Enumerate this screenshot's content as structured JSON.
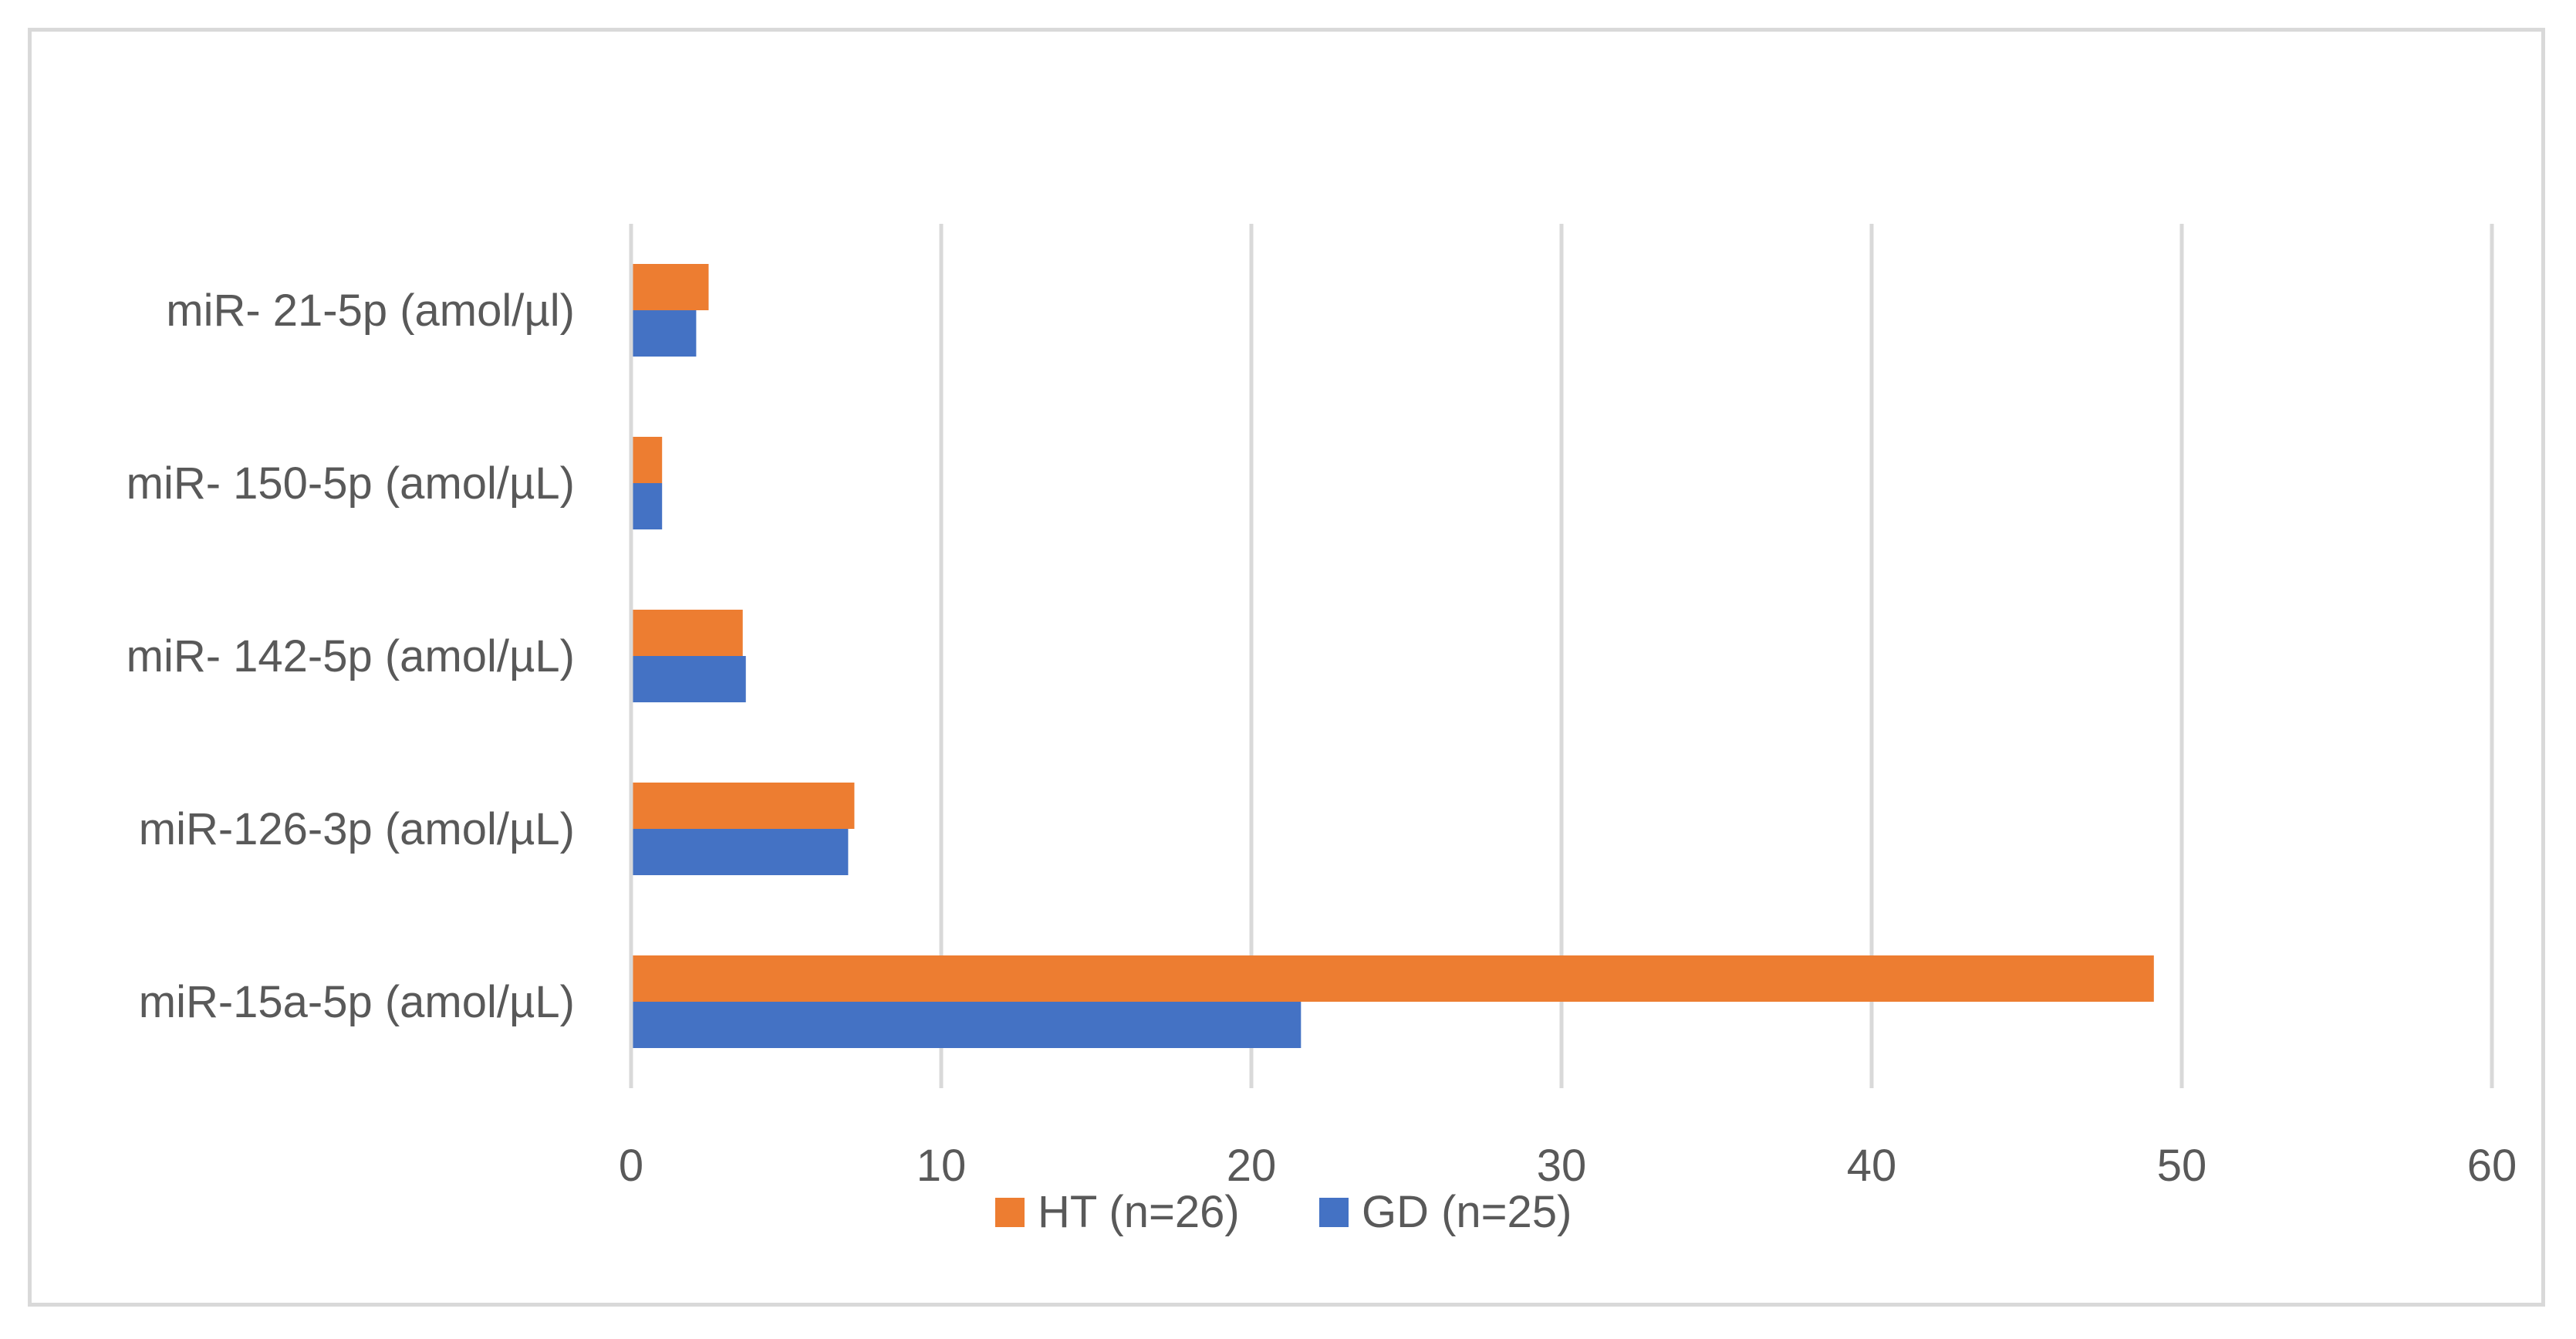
{
  "chart_data": {
    "type": "bar",
    "orientation": "horizontal",
    "title": "",
    "xlabel": "",
    "ylabel": "",
    "categories": [
      "miR- 21-5p (amol/µl)",
      "miR- 150-5p (amol/µL)",
      "miR- 142-5p (amol/µL)",
      "miR-126-3p (amol/µL)",
      "miR-15a-5p (amol/µL)"
    ],
    "series": [
      {
        "name": "HT (n=26)",
        "color": "#ED7D31",
        "values": [
          2.5,
          1.0,
          3.6,
          7.2,
          49.1
        ]
      },
      {
        "name": "GD (n=25)",
        "color": "#4472C4",
        "values": [
          2.1,
          1.0,
          3.7,
          7.0,
          21.6
        ]
      }
    ],
    "xlim": [
      0,
      60
    ],
    "xticks": [
      "0",
      "10",
      "20",
      "30",
      "40",
      "50",
      "60"
    ],
    "grid": true,
    "legend_position": "bottom"
  }
}
